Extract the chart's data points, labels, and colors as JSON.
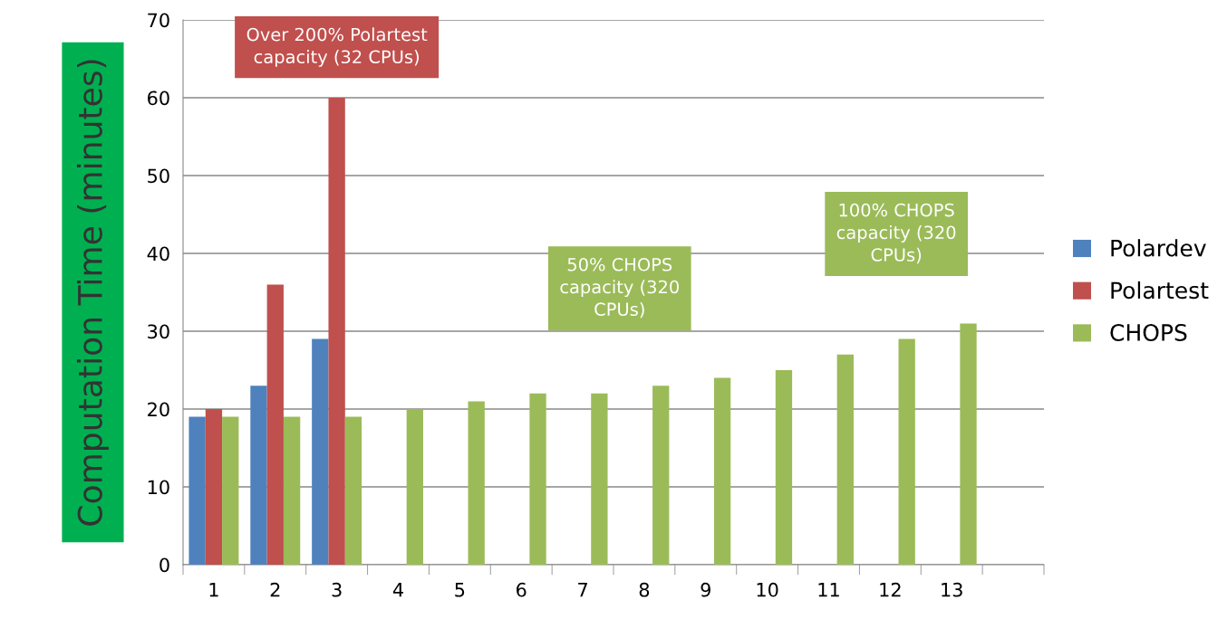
{
  "chart_data": {
    "type": "bar",
    "ylabel": "Computation Time (minutes)",
    "categories": [
      "1",
      "2",
      "3",
      "4",
      "5",
      "6",
      "7",
      "8",
      "9",
      "10",
      "11",
      "12",
      "13",
      null
    ],
    "series": [
      {
        "name": "Polardev",
        "color": "#4f81bd",
        "values": [
          19,
          23,
          29,
          null,
          null,
          null,
          null,
          null,
          null,
          null,
          null,
          null,
          null,
          null
        ]
      },
      {
        "name": "Polartest",
        "color": "#c0504d",
        "values": [
          20,
          36,
          60,
          null,
          null,
          null,
          null,
          null,
          null,
          null,
          null,
          null,
          null,
          null
        ]
      },
      {
        "name": "CHOPS",
        "color": "#9bbb59",
        "values": [
          19,
          19,
          19,
          20,
          21,
          22,
          22,
          23,
          24,
          25,
          27,
          29,
          31,
          null
        ]
      }
    ],
    "ylim": [
      0,
      70
    ],
    "yticks": [
      0,
      10,
      20,
      30,
      40,
      50,
      60,
      70
    ],
    "grid": "y",
    "legend": "right",
    "annotations": [
      "Over 200% Polartest\ncapacity (32 CPUs)",
      "50% CHOPS\ncapacity (320\nCPUs)",
      "100% CHOPS\ncapacity (320\nCPUs)"
    ]
  }
}
